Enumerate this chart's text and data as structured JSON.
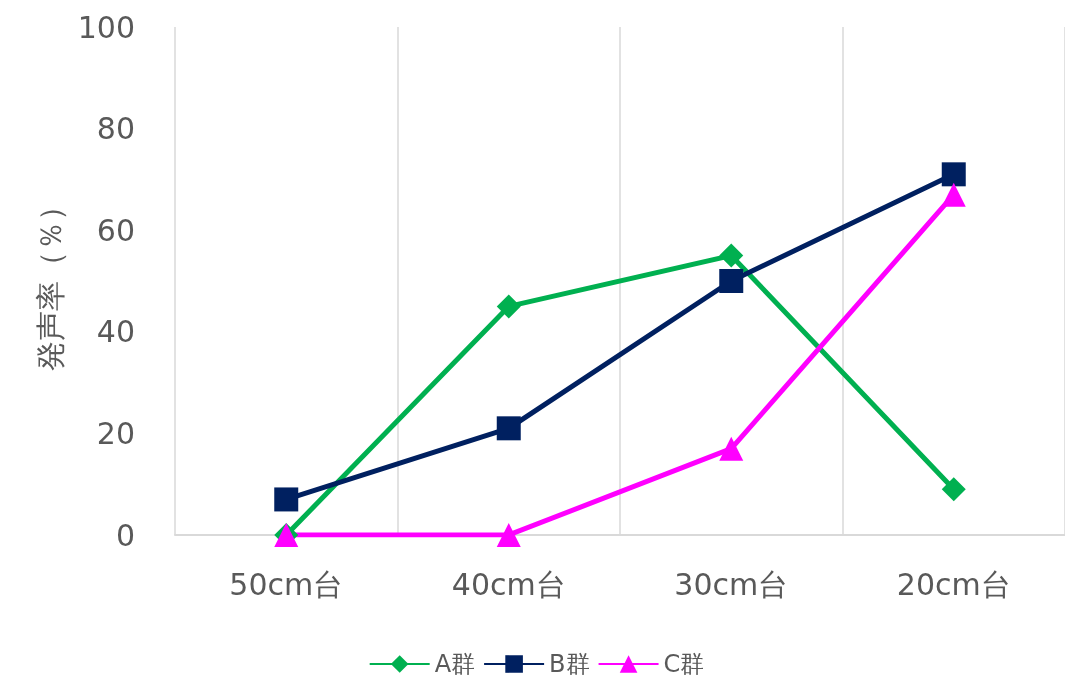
{
  "chart_data": {
    "type": "line",
    "ylabel": "発声率（％）",
    "categories": [
      "50cm台",
      "40cm台",
      "30cm台",
      "20cm台"
    ],
    "ylim": [
      0,
      100
    ],
    "yticks": [
      0,
      20,
      40,
      60,
      80,
      100
    ],
    "grid": "x",
    "legend": "bottom",
    "series": [
      {
        "name": "A群",
        "color": "#00b050",
        "marker": "diamond",
        "values": [
          0,
          45,
          55,
          9
        ]
      },
      {
        "name": "B群",
        "color": "#002060",
        "marker": "square",
        "values": [
          7,
          21,
          50,
          71
        ]
      },
      {
        "name": "C群",
        "color": "#ff00ff",
        "marker": "triangle",
        "values": [
          0,
          0,
          17,
          67
        ]
      }
    ]
  }
}
